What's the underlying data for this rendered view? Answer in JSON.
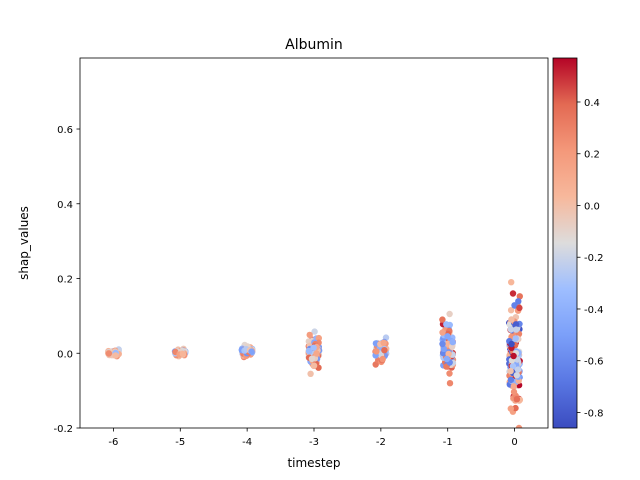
{
  "chart_data": {
    "type": "scatter",
    "title": "Albumin",
    "xlabel": "timestep",
    "ylabel": "shap_values",
    "x_categories": [
      "-6",
      "-5",
      "-4",
      "-3",
      "-2",
      "-1",
      "0"
    ],
    "xlim": [
      -6.5,
      0.5
    ],
    "ylim": [
      -0.2,
      0.79
    ],
    "y_ticks": [
      "-0.2",
      "0.0",
      "0.2",
      "0.4",
      "0.6"
    ],
    "y_tick_values": [
      -0.2,
      0.0,
      0.2,
      0.4,
      0.6
    ],
    "colorbar": {
      "colormap": "coolwarm",
      "range": [
        -0.86,
        0.57
      ],
      "ticks": [
        "-0.8",
        "-0.6",
        "-0.4",
        "-0.2",
        "0.0",
        "0.2",
        "0.4"
      ],
      "tick_values": [
        -0.8,
        -0.6,
        -0.4,
        -0.2,
        0.0,
        0.2,
        0.4
      ]
    },
    "strips": [
      {
        "x": -6,
        "y_range": [
          -0.008,
          0.01
        ],
        "color_range": [
          -0.5,
          0.3
        ]
      },
      {
        "x": -5,
        "y_range": [
          -0.008,
          0.012
        ],
        "color_range": [
          -0.5,
          0.35
        ]
      },
      {
        "x": -4,
        "y_range": [
          -0.01,
          0.022
        ],
        "color_range": [
          -0.6,
          0.35
        ]
      },
      {
        "x": -3,
        "y_range": [
          -0.055,
          0.058
        ],
        "color_range": [
          -0.6,
          0.45
        ]
      },
      {
        "x": -2,
        "y_range": [
          -0.03,
          0.042
        ],
        "color_range": [
          -0.55,
          0.4
        ]
      },
      {
        "x": -1,
        "y_range": [
          -0.08,
          0.105
        ],
        "color_range": [
          -0.65,
          0.55
        ]
      },
      {
        "x": 0,
        "y_range": [
          -0.2,
          0.19
        ],
        "color_range": [
          -0.86,
          0.57
        ]
      }
    ]
  }
}
